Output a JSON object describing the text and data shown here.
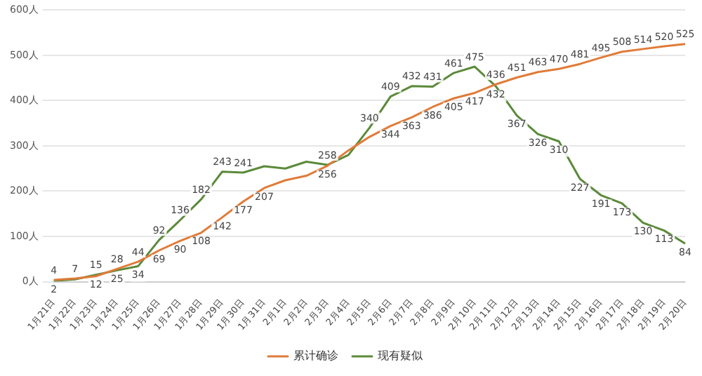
{
  "chart_data": {
    "type": "line",
    "categories": [
      "1月21日",
      "1月22日",
      "1月23日",
      "1月24日",
      "1月25日",
      "1月26日",
      "1月27日",
      "1月28日",
      "1月29日",
      "1月30日",
      "1月31日",
      "2月1日",
      "2月2日",
      "2月3日",
      "2月4日",
      "2月5日",
      "2月6日",
      "2月7日",
      "2月8日",
      "2月9日",
      "2月10日",
      "2月11日",
      "2月12日",
      "2月13日",
      "2月14日",
      "2月15日",
      "2月16日",
      "2月17日",
      "2月18日",
      "2月19日",
      "2月20日"
    ],
    "series": [
      {
        "name": "累计确诊",
        "color": "#e07b39",
        "values": [
          4,
          7,
          12,
          28,
          44,
          69,
          90,
          108,
          142,
          177,
          207,
          224,
          234,
          256,
          290,
          320,
          344,
          363,
          386,
          405,
          417,
          436,
          451,
          463,
          470,
          481,
          495,
          508,
          514,
          520,
          525
        ],
        "value_labels": [
          "4",
          "7",
          "12",
          "28",
          "44",
          "69",
          "90",
          "108",
          "142",
          "177",
          "207",
          null,
          null,
          "256",
          null,
          null,
          "344",
          "363",
          "386",
          "405",
          "417",
          "436",
          "451",
          "463",
          "470",
          "481",
          "495",
          "508",
          "514",
          "520",
          "525"
        ]
      },
      {
        "name": "现有疑似",
        "color": "#5b8a3a",
        "values": [
          2,
          5,
          15,
          25,
          34,
          92,
          136,
          182,
          243,
          241,
          255,
          250,
          265,
          258,
          280,
          340,
          409,
          432,
          431,
          461,
          475,
          432,
          367,
          326,
          310,
          227,
          191,
          173,
          130,
          113,
          84
        ],
        "value_labels": [
          "2",
          null,
          "15",
          "25",
          "34",
          "92",
          "136",
          "182",
          "243",
          "241",
          null,
          null,
          null,
          "258",
          null,
          "340",
          "409",
          "432",
          "431",
          "461",
          "475",
          "432",
          "367",
          "326",
          "310",
          "227",
          "191",
          "173",
          "130",
          "113",
          "84"
        ]
      }
    ],
    "ylim": [
      0,
      600
    ],
    "yticks": [
      {
        "value": 0,
        "label": "0人"
      },
      {
        "value": 100,
        "label": "100人"
      },
      {
        "value": 200,
        "label": "200人"
      },
      {
        "value": 300,
        "label": "300人"
      },
      {
        "value": 400,
        "label": "400人"
      },
      {
        "value": 500,
        "label": "500人"
      },
      {
        "value": 600,
        "label": "600人"
      }
    ],
    "grid": "y",
    "legend": "bottom",
    "marker": "none",
    "line_style": "solid"
  }
}
